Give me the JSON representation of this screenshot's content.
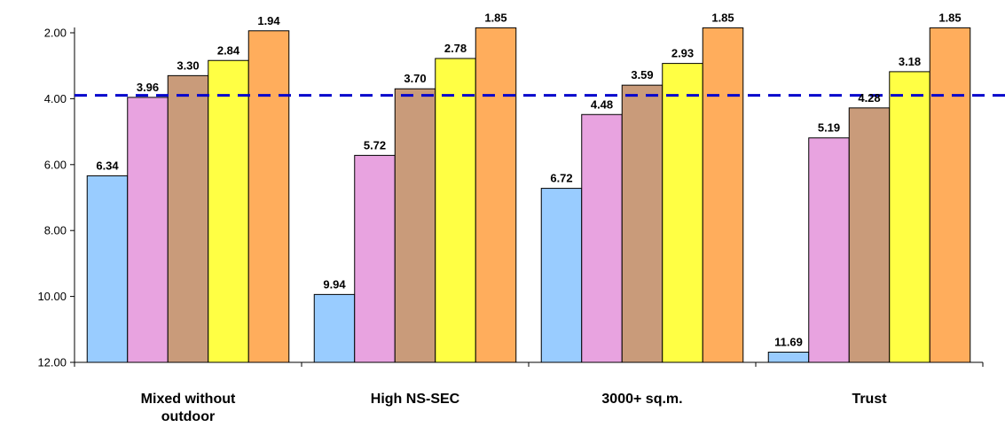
{
  "chart_data": {
    "type": "bar",
    "orientation": "vertical",
    "y_axis_inverted": true,
    "ylim": [
      2.0,
      12.0
    ],
    "yticks": [
      "2.00",
      "4.00",
      "6.00",
      "8.00",
      "10.00",
      "12.00"
    ],
    "grid": false,
    "legend": "none",
    "reference_line": {
      "value": 3.9,
      "style": "dashed",
      "color": "#0000cc"
    },
    "categories": [
      [
        "Mixed without",
        "outdoor"
      ],
      [
        "High NS-SEC"
      ],
      [
        "3000+ sq.m."
      ],
      [
        "Trust"
      ]
    ],
    "series": [
      {
        "color": "#99ccff",
        "values": [
          6.34,
          9.94,
          6.72,
          11.69
        ],
        "labels": [
          "6.34",
          "9.94",
          "6.72",
          "11.69"
        ]
      },
      {
        "color": "#e8a3e0",
        "values": [
          3.96,
          5.72,
          4.48,
          5.19
        ],
        "labels": [
          "3.96",
          "5.72",
          "4.48",
          "5.19"
        ]
      },
      {
        "color": "#c99b7a",
        "values": [
          3.3,
          3.7,
          3.59,
          4.28
        ],
        "labels": [
          "3.30",
          "3.70",
          "3.59",
          "4.28"
        ]
      },
      {
        "color": "#ffff44",
        "values": [
          2.84,
          2.78,
          2.93,
          3.18
        ],
        "labels": [
          "2.84",
          "2.78",
          "2.93",
          "3.18"
        ]
      },
      {
        "color": "#ffad5c",
        "values": [
          1.94,
          1.85,
          1.85,
          1.85
        ],
        "labels": [
          "1.94",
          "1.85",
          "1.85",
          "1.85"
        ]
      }
    ]
  }
}
